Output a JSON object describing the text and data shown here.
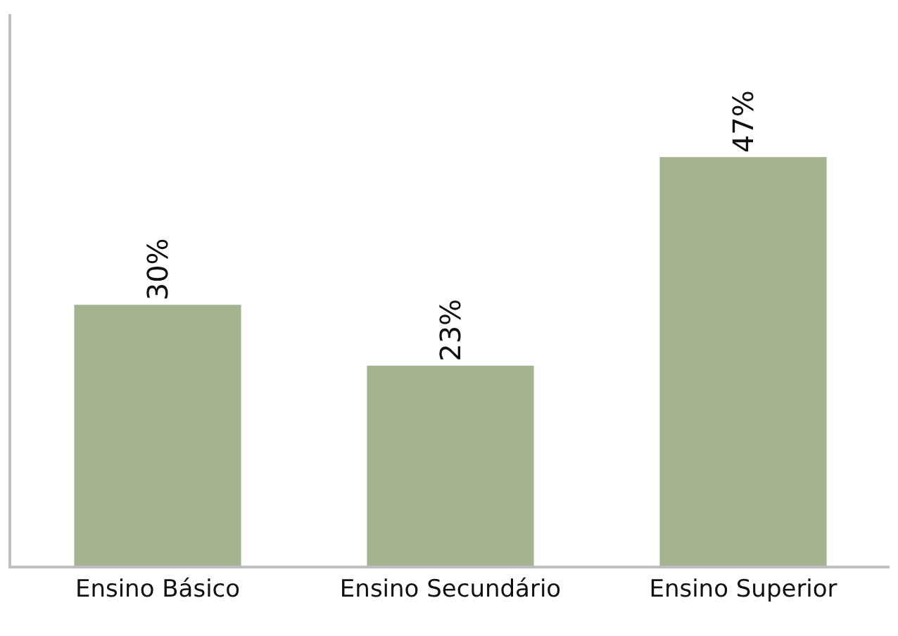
{
  "chart_data": {
    "type": "bar",
    "categories": [
      "Ensino Básico",
      "Ensino Secundário",
      "Ensino Superior"
    ],
    "values": [
      30,
      23,
      47
    ],
    "color": "#a4b490",
    "value_labels": [
      "30%",
      "23%",
      "47%"
    ],
    "tick_labels": "x"
  }
}
